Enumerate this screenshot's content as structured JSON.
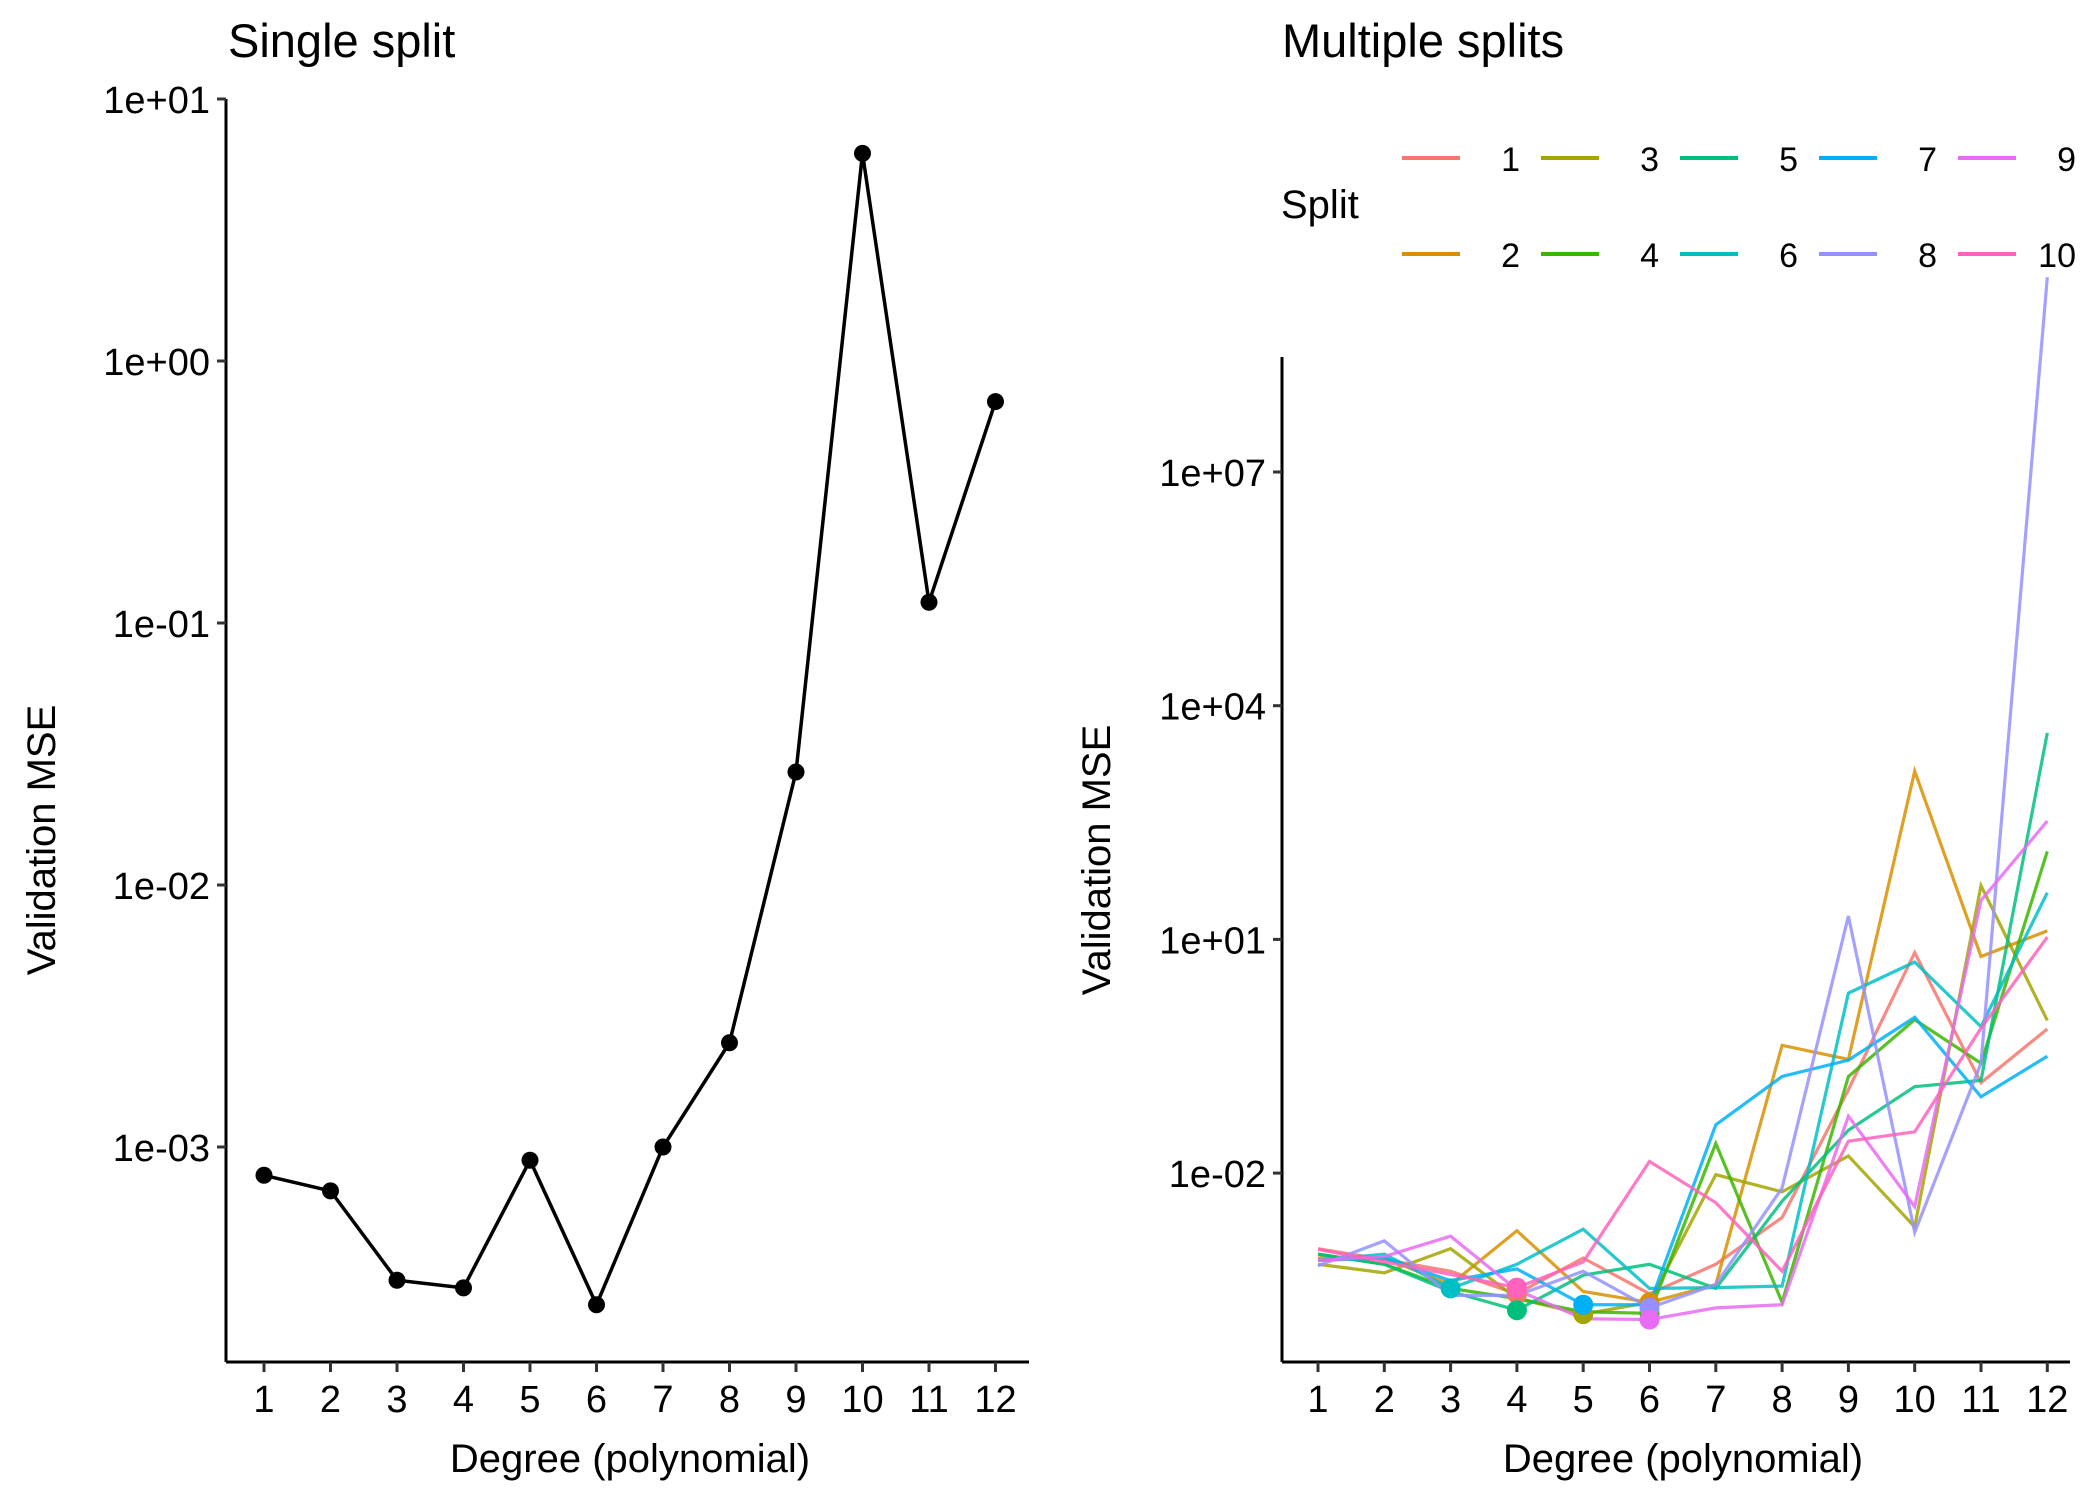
{
  "chart_data": [
    {
      "type": "line",
      "title": "Single split",
      "xlabel": "Degree (polynomial)",
      "ylabel": "Validation MSE",
      "yscale": "log10",
      "ylim": [
        0.00018,
        10
      ],
      "xlim": [
        0.5,
        12.5
      ],
      "grid": false,
      "x": [
        1,
        2,
        3,
        4,
        5,
        6,
        7,
        8,
        9,
        10,
        11,
        12
      ],
      "xticks": [
        "1",
        "2",
        "3",
        "4",
        "5",
        "6",
        "7",
        "8",
        "9",
        "10",
        "11",
        "12"
      ],
      "yticks": [
        {
          "value": 10,
          "label": "1e+01"
        },
        {
          "value": 1,
          "label": "1e+00"
        },
        {
          "value": 0.1,
          "label": "1e-01"
        },
        {
          "value": 0.01,
          "label": "1e-02"
        },
        {
          "value": 0.001,
          "label": "1e-03"
        }
      ],
      "series": [
        {
          "name": "MSE",
          "color": "#000000",
          "values": [
            0.00078,
            0.00068,
            0.00031,
            0.00029,
            0.00089,
            0.00025,
            0.001,
            0.0025,
            0.027,
            6.2,
            0.12,
            0.7
          ]
        }
      ]
    },
    {
      "type": "line",
      "title": "Multiple splits",
      "xlabel": "Degree (polynomial)",
      "ylabel": "Validation MSE",
      "yscale": "log10",
      "log_ylim": [
        -4.45,
        8.75
      ],
      "xlim": [
        0.5,
        12.5
      ],
      "grid": false,
      "legend": {
        "title": "Split",
        "position": "top"
      },
      "x": [
        1,
        2,
        3,
        4,
        5,
        6,
        7,
        8,
        9,
        10,
        11,
        12
      ],
      "xticks": [
        "1",
        "2",
        "3",
        "4",
        "5",
        "6",
        "7",
        "8",
        "9",
        "10",
        "11",
        "12"
      ],
      "yticks": [
        {
          "log": 7,
          "label": "1e+07"
        },
        {
          "log": 4,
          "label": "1e+04"
        },
        {
          "log": 1,
          "label": "1e+01"
        },
        {
          "log": -2,
          "label": "1e-02"
        }
      ],
      "series_note": "values are log10(MSE)",
      "series": [
        {
          "name": "1",
          "color": "#F8766D",
          "log_values": [
            -2.97,
            -3.11,
            -3.26,
            -3.55,
            -3.09,
            -3.55,
            -3.17,
            -2.57,
            -0.93,
            0.83,
            -0.84,
            -0.15
          ]
        },
        {
          "name": "2",
          "color": "#D89000",
          "log_values": [
            -3.09,
            -3.09,
            -3.43,
            -2.74,
            -3.52,
            -3.66,
            -3.43,
            -0.36,
            -0.54,
            3.16,
            0.78,
            1.11
          ]
        },
        {
          "name": "3",
          "color": "#A3A500",
          "log_values": [
            -3.17,
            -3.28,
            -2.97,
            -3.61,
            -3.81,
            -3.66,
            -2.02,
            -2.24,
            -1.78,
            -2.69,
            1.69,
            -0.04
          ]
        },
        {
          "name": "4",
          "color": "#39B600",
          "log_values": [
            -3.04,
            -3.17,
            -3.48,
            -3.61,
            -3.78,
            -3.8,
            -1.62,
            -3.66,
            -0.76,
            -0.03,
            -0.59,
            2.13
          ]
        },
        {
          "name": "5",
          "color": "#00BF7D",
          "log_values": [
            -3.04,
            -3.17,
            -3.52,
            -3.76,
            -3.31,
            -3.17,
            -3.48,
            -2.36,
            -1.45,
            -0.89,
            -0.81,
            3.65
          ]
        },
        {
          "name": "6",
          "color": "#00BFC4",
          "log_values": [
            -3.12,
            -3.04,
            -3.48,
            -3.17,
            -2.72,
            -3.48,
            -3.47,
            -3.45,
            0.31,
            0.71,
            -0.12,
            1.6
          ]
        },
        {
          "name": "7",
          "color": "#00B0F6",
          "log_values": [
            -3.12,
            -3.09,
            -3.38,
            -3.23,
            -3.69,
            -3.69,
            -1.38,
            -0.76,
            -0.55,
            0.0,
            -1.02,
            -0.5
          ]
        },
        {
          "name": "8",
          "color": "#9590FF",
          "log_values": [
            -3.19,
            -2.87,
            -3.57,
            -3.57,
            -3.26,
            -3.73,
            -3.43,
            -2.19,
            1.3,
            -2.76,
            -0.59,
            9.5
          ]
        },
        {
          "name": "9",
          "color": "#E76BF3",
          "log_values": [
            -3.12,
            -3.07,
            -2.81,
            -3.5,
            -3.87,
            -3.88,
            -3.73,
            -3.69,
            -1.27,
            -2.43,
            1.5,
            2.52
          ]
        },
        {
          "name": "10",
          "color": "#FF62BC",
          "log_values": [
            -2.98,
            -3.14,
            -3.3,
            -3.47,
            -3.14,
            -1.85,
            -2.38,
            -3.26,
            -1.59,
            -1.47,
            -0.14,
            1.03
          ]
        }
      ]
    }
  ]
}
